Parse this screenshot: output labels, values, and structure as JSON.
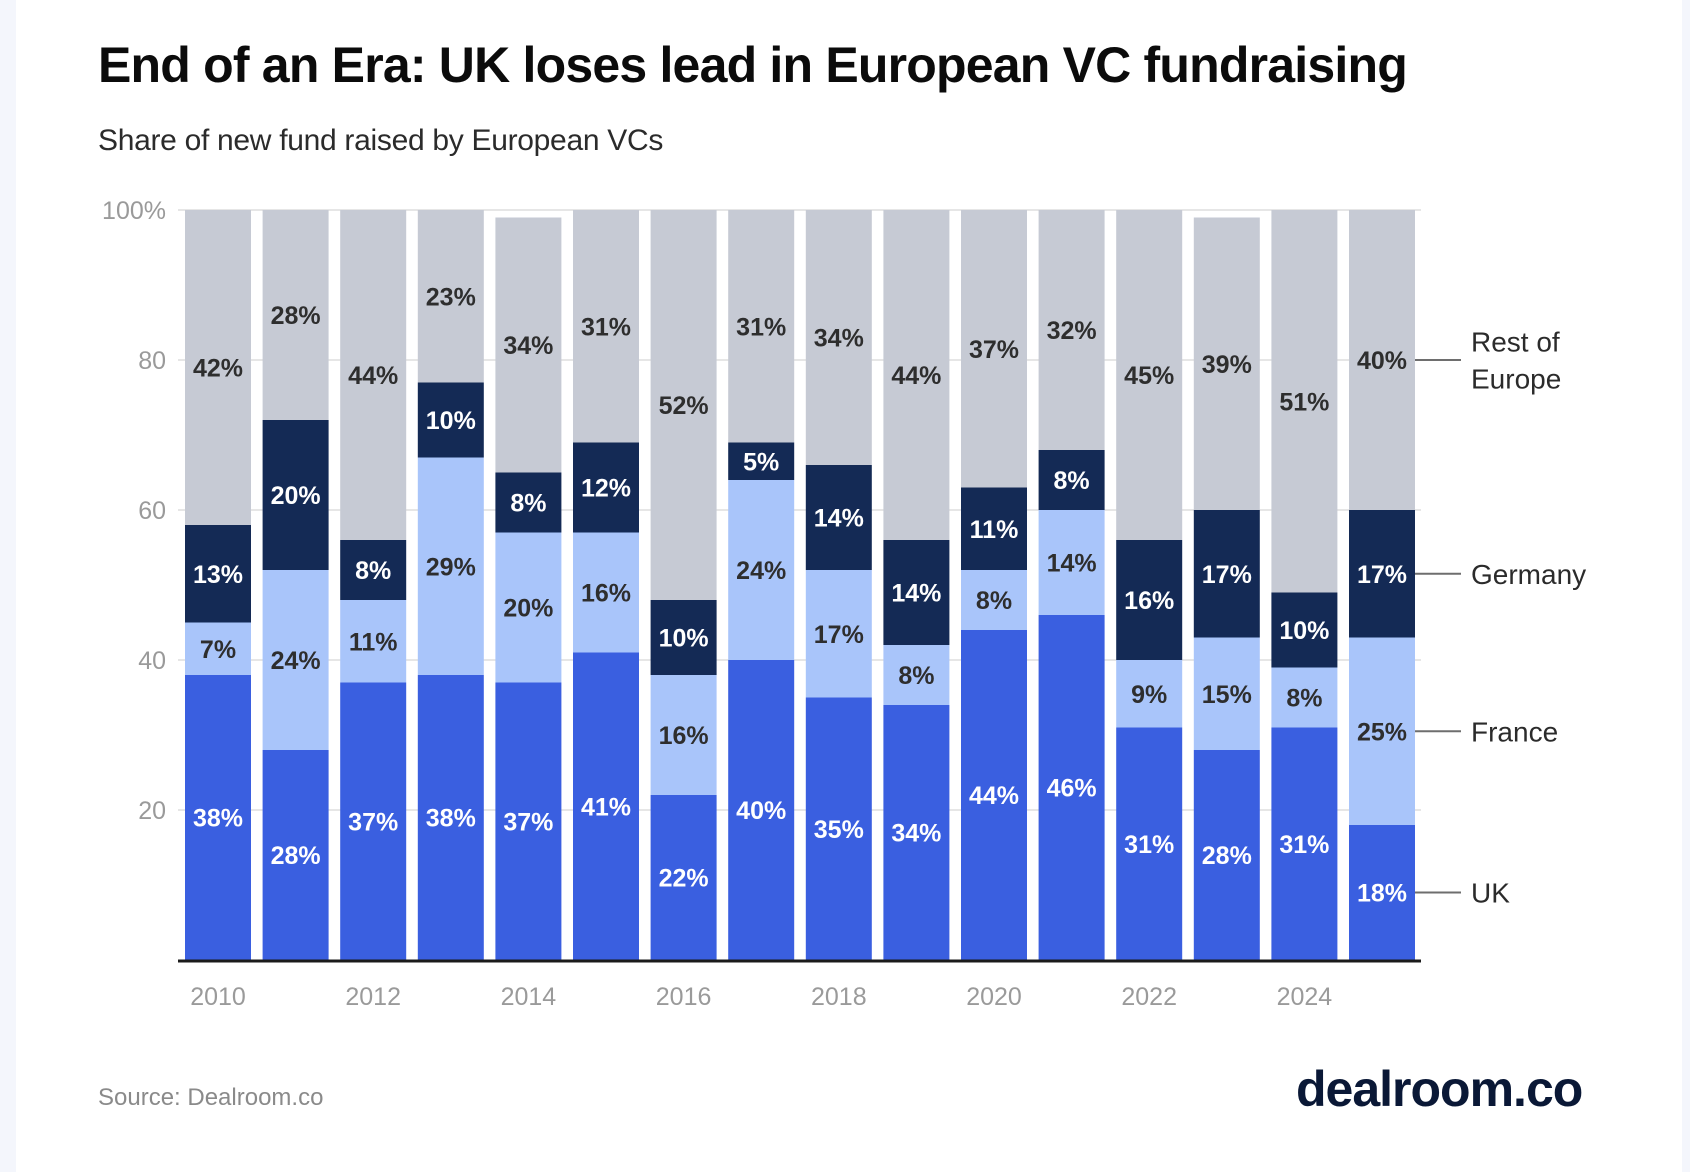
{
  "header": {
    "title": "End of an Era: UK loses lead in European VC fundraising",
    "subtitle": "Share of new fund raised by European VCs"
  },
  "footer": {
    "source": "Source: Dealroom.co",
    "logo": "dealroom.co"
  },
  "colors": {
    "uk": "#3A5FE0",
    "france": "#A9C5FA",
    "germany": "#142A55",
    "rest_of_europe": "#C6CAD4",
    "label_dark": "#2E2E2E",
    "label_light": "#FFFFFF"
  },
  "chart_data": {
    "type": "bar",
    "stacked": true,
    "title": "End of an Era: UK loses lead in European VC fundraising",
    "subtitle": "Share of new fund raised by European VCs",
    "xlabel": "",
    "ylabel": "",
    "ylim": [
      0,
      100
    ],
    "yticks": [
      20,
      40,
      60,
      80,
      100
    ],
    "ytick_labels": [
      "20",
      "40",
      "60",
      "80",
      "100%"
    ],
    "grid": true,
    "legend": "right (inline labels)",
    "categories": [
      "2010",
      "2011",
      "2012",
      "2013",
      "2014",
      "2015",
      "2016",
      "2017",
      "2018",
      "2019",
      "2020",
      "2021",
      "2022",
      "2023",
      "2024",
      "2025"
    ],
    "xtick_labels": [
      "2010",
      "",
      "2012",
      "",
      "2014",
      "",
      "2016",
      "",
      "2018",
      "",
      "2020",
      "",
      "2022",
      "",
      "2024",
      ""
    ],
    "series": [
      {
        "name": "UK",
        "key": "uk",
        "label_color": "light",
        "values": [
          38,
          28,
          37,
          38,
          37,
          41,
          22,
          40,
          35,
          34,
          44,
          46,
          31,
          28,
          31,
          18
        ]
      },
      {
        "name": "France",
        "key": "france",
        "label_color": "dark",
        "values": [
          7,
          24,
          11,
          29,
          20,
          16,
          16,
          24,
          17,
          8,
          8,
          14,
          9,
          15,
          8,
          25
        ]
      },
      {
        "name": "Germany",
        "key": "germany",
        "label_color": "light",
        "values": [
          13,
          20,
          8,
          10,
          8,
          12,
          10,
          5,
          14,
          14,
          11,
          8,
          16,
          17,
          10,
          17
        ]
      },
      {
        "name": "Rest of Europe",
        "key": "rest_of_europe",
        "label_color": "dark",
        "values": [
          42,
          28,
          44,
          23,
          34,
          31,
          52,
          31,
          34,
          44,
          37,
          32,
          45,
          39,
          51,
          40
        ]
      }
    ],
    "legend_labels": [
      {
        "key": "rest_of_europe",
        "lines": [
          "Rest of",
          "Europe"
        ]
      },
      {
        "key": "germany",
        "lines": [
          "Germany"
        ]
      },
      {
        "key": "france",
        "lines": [
          "France"
        ]
      },
      {
        "key": "uk",
        "lines": [
          "UK"
        ]
      }
    ]
  }
}
